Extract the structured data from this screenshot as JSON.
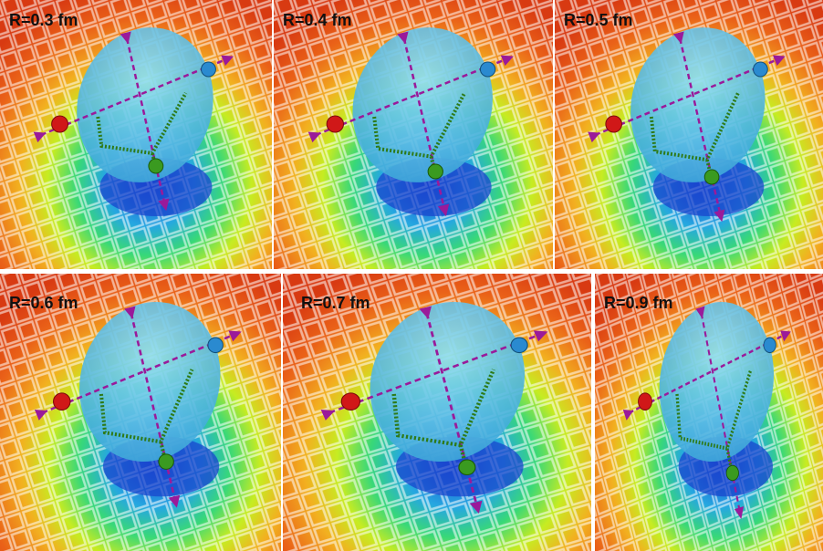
{
  "panels": [
    {
      "label": "R=0.3 fm"
    },
    {
      "label": "R=0.4 fm"
    },
    {
      "label": "R=0.5 fm"
    },
    {
      "label": "R=0.6 fm"
    },
    {
      "label": "R=0.7 fm"
    },
    {
      "label": "R=0.9 fm"
    }
  ]
}
